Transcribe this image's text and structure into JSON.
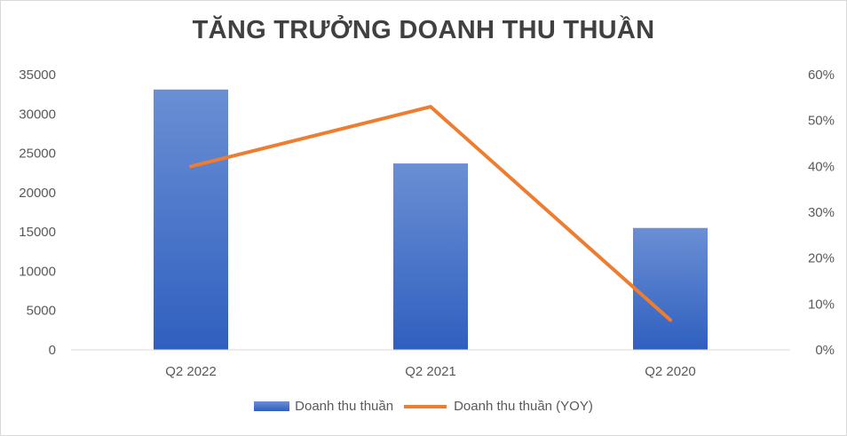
{
  "chart_data": {
    "type": "bar+line",
    "title": "TĂNG TRƯỞNG DOANH THU THUẦN",
    "categories": [
      "Q2 2022",
      "Q2 2021",
      "Q2 2020"
    ],
    "series": [
      {
        "name": "Doanh thu thuần",
        "type": "bar",
        "axis": "left",
        "values": [
          33100,
          23700,
          15500
        ],
        "color": "#4472c4"
      },
      {
        "name": "Doanh thu thuần (YOY)",
        "type": "line",
        "axis": "right",
        "values": [
          0.4,
          0.53,
          0.065
        ],
        "color": "#ed7d31"
      }
    ],
    "y_left": {
      "ylim": [
        0,
        35000
      ],
      "ticks": [
        "0",
        "5000",
        "10000",
        "15000",
        "20000",
        "25000",
        "30000",
        "35000"
      ]
    },
    "y_right": {
      "ylim": [
        0,
        0.6
      ],
      "ticks": [
        "0%",
        "10%",
        "20%",
        "30%",
        "40%",
        "50%",
        "60%"
      ]
    },
    "grid": false,
    "legend": "bottom"
  }
}
